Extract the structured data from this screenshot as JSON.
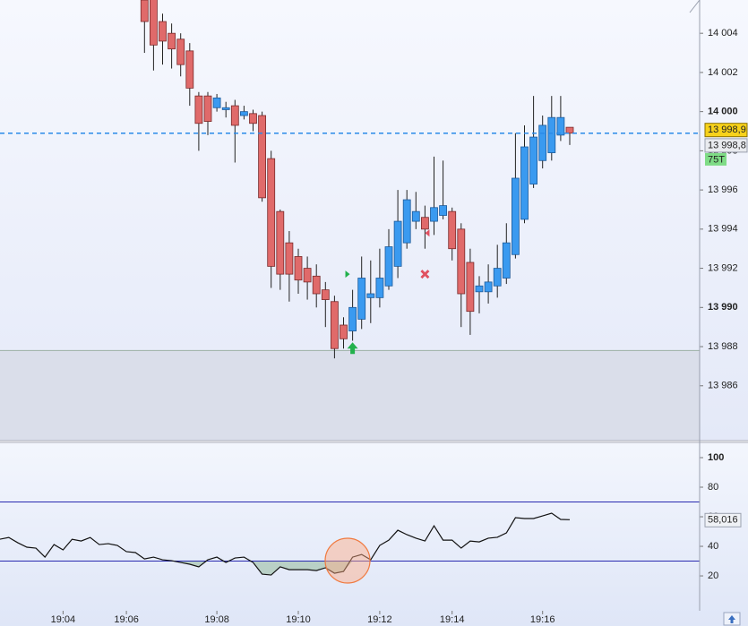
{
  "chart_data": [
    {
      "type": "candlestick",
      "open": [
        null,
        null,
        null,
        null,
        null,
        null,
        null,
        null,
        null,
        null,
        null,
        null,
        null,
        null,
        null,
        14006.8,
        14005.7,
        14005.8,
        14004.6,
        14004.0,
        14003.7,
        14003.1,
        14000.8,
        14000.8,
        14000.2,
        14000.1,
        14000.3,
        13999.8,
        13999.9,
        13999.8,
        13997.6,
        13994.9,
        13993.3,
        13992.6,
        13992.0,
        13991.6,
        13990.9,
        13990.3,
        13989.1,
        13988.8,
        13989.4,
        13990.5,
        13990.5,
        13991.1,
        13992.1,
        13993.3,
        13994.4,
        13994.6,
        13994.4,
        13994.7,
        13994.9,
        13994.0,
        13992.3,
        13990.8,
        13990.8,
        13991.1,
        13991.5,
        13992.7,
        13994.5,
        13996.3,
        13997.5,
        13997.9,
        13998.8,
        13999.2
      ],
      "high": [
        null,
        null,
        null,
        null,
        null,
        null,
        null,
        null,
        null,
        null,
        null,
        null,
        null,
        null,
        null,
        14007.0,
        14006.0,
        14006.2,
        14005.0,
        14004.5,
        14004.0,
        14003.5,
        14001.0,
        14001.0,
        14000.9,
        14000.5,
        14000.6,
        14000.3,
        14000.1,
        14000.0,
        13998.0,
        13995.0,
        13993.9,
        13993.0,
        13992.6,
        13992.2,
        13991.3,
        13990.6,
        13989.5,
        13990.9,
        13992.6,
        13992.4,
        13993.0,
        13994.0,
        13996.0,
        13996.0,
        13995.9,
        13995.2,
        13997.7,
        13997.5,
        13995.1,
        13994.3,
        13993.0,
        13991.6,
        13992.2,
        13993.2,
        13994.3,
        13998.9,
        13999.3,
        14000.8,
        13999.8,
        14000.8,
        14000.8,
        13999.2
      ],
      "low": [
        null,
        null,
        null,
        null,
        null,
        null,
        null,
        null,
        null,
        null,
        null,
        null,
        null,
        null,
        null,
        14005.7,
        14003.0,
        14002.1,
        14002.4,
        14002.2,
        14001.8,
        14000.3,
        13998.0,
        13998.8,
        14000.0,
        13999.7,
        13997.4,
        13999.6,
        13999.0,
        13995.4,
        13991.0,
        13990.9,
        13990.3,
        13990.7,
        13990.4,
        13990.0,
        13989.0,
        13987.4,
        13987.9,
        13988.3,
        13988.9,
        13989.2,
        13990.0,
        13990.9,
        13991.5,
        13993.0,
        13994.0,
        13993.0,
        13993.7,
        13994.5,
        13992.4,
        13989.0,
        13988.6,
        13989.7,
        13990.2,
        13990.5,
        13991.2,
        13992.5,
        13994.3,
        13996.1,
        13997.1,
        13997.5,
        13998.5,
        13998.3
      ],
      "close": [
        null,
        null,
        null,
        null,
        null,
        null,
        null,
        null,
        null,
        null,
        null,
        null,
        null,
        null,
        null,
        14006.0,
        14004.6,
        14003.4,
        14003.6,
        14003.2,
        14002.4,
        14001.2,
        13999.4,
        13999.5,
        14000.7,
        14000.2,
        13999.3,
        14000.0,
        13999.4,
        13995.6,
        13992.1,
        13991.7,
        13991.7,
        13991.4,
        13991.3,
        13990.7,
        13990.4,
        13987.9,
        13988.4,
        13990.0,
        13991.5,
        13990.7,
        13991.5,
        13993.1,
        13994.4,
        13995.5,
        13994.9,
        13994.0,
        13995.1,
        13995.2,
        13993.0,
        13990.7,
        13989.8,
        13991.1,
        13991.3,
        13992.0,
        13993.3,
        13996.6,
        13998.2,
        13998.7,
        13999.3,
        13999.7,
        13999.7,
        13998.9
      ],
      "up_color": "#3a9af0",
      "down_color": "#e06a6a",
      "ylim": [
        13983.2,
        14005.7
      ],
      "yticks": [
        {
          "value": 14004,
          "label": "14 004"
        },
        {
          "value": 14002,
          "label": "14 002"
        },
        {
          "value": 14000,
          "label": "14 000"
        },
        {
          "value": 13998,
          "label": "13 998"
        },
        {
          "value": 13996,
          "label": "13 996"
        },
        {
          "value": 13994,
          "label": "13 994"
        },
        {
          "value": 13992,
          "label": "13 992"
        },
        {
          "value": 13990,
          "label": "13 990"
        },
        {
          "value": 13988,
          "label": "13 988"
        },
        {
          "value": 13986,
          "label": "13 986"
        }
      ],
      "zone": [
        13983.2,
        13987.8
      ],
      "price_labels": [
        {
          "value": 13998.9,
          "label": "13 998,9"
        },
        {
          "value": 13998.8,
          "label": "13 998,8"
        }
      ],
      "interval_label": "75T",
      "markers": [
        {
          "kind": "arrow-up",
          "index": 39,
          "price": 13987.9,
          "color": "#22b14c"
        },
        {
          "kind": "triangle-right",
          "index": 38.4,
          "price": 13991.7,
          "color": "#22b14c"
        },
        {
          "kind": "cross",
          "index": 47,
          "price": 13991.7,
          "color": "#e05060"
        },
        {
          "kind": "triangle-left",
          "index": 47.3,
          "price": 13993.8,
          "color": "#e05060"
        }
      ]
    },
    {
      "type": "line",
      "categories": [
        null,
        null,
        null,
        null,
        null,
        null,
        null,
        "19:04",
        null,
        null,
        null,
        null,
        null,
        null,
        "19:06",
        null,
        null,
        null,
        null,
        null,
        null,
        null,
        null,
        null,
        "19:08",
        null,
        null,
        null,
        null,
        null,
        null,
        null,
        null,
        "19:10",
        null,
        null,
        null,
        null,
        null,
        null,
        null,
        null,
        "19:12",
        null,
        null,
        null,
        null,
        null,
        null,
        null,
        "19:14",
        null,
        null,
        null,
        null,
        null,
        null,
        null,
        null,
        null,
        "19:16",
        null,
        null,
        null
      ],
      "values": [
        44.8,
        46,
        42.4,
        39.4,
        38.8,
        32.7,
        41.2,
        37.6,
        44.8,
        43.6,
        46,
        41.2,
        41.8,
        40.6,
        36.4,
        35.8,
        31.5,
        32.7,
        30.9,
        30.3,
        29.1,
        27.9,
        26.1,
        30.9,
        32.7,
        29.1,
        32.1,
        32.7,
        29.1,
        21.2,
        20.6,
        26.1,
        24.2,
        24.2,
        24.2,
        23.6,
        25.5,
        21.8,
        23,
        32.7,
        34.5,
        30.9,
        40.6,
        44.2,
        50.9,
        47.9,
        45.5,
        43.6,
        53.9,
        44.2,
        44.2,
        38.8,
        43.6,
        43,
        45.5,
        46.1,
        49.1,
        59.4,
        58.8,
        58.8,
        60.6,
        62.4,
        58.2,
        58.016
      ],
      "last_value_label": "58,016",
      "color": "#111111",
      "ylim": [
        -3.6,
        110.3
      ],
      "yticks": [
        20,
        40,
        60,
        80,
        100
      ],
      "levels": [
        70,
        30
      ],
      "level_color": "#2a2ab0",
      "fill_color": "#a9c7b4"
    }
  ]
}
